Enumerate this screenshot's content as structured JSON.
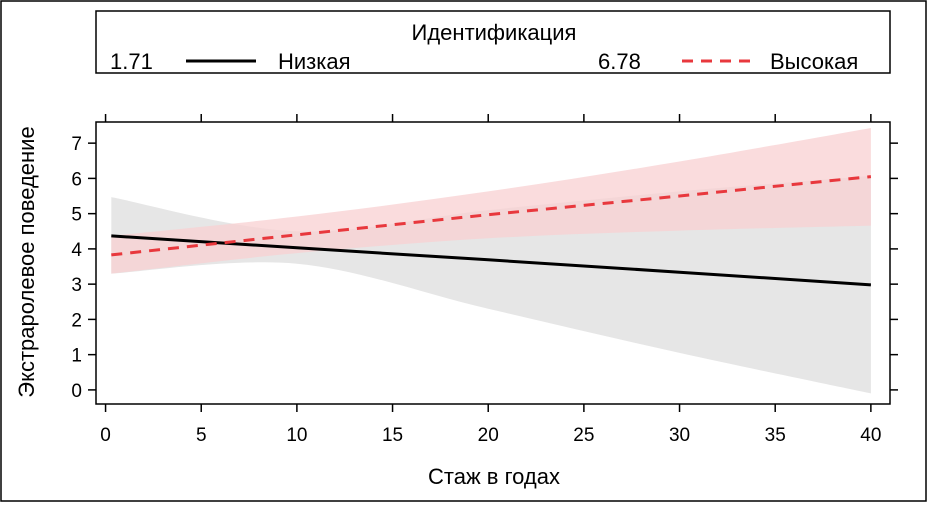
{
  "chart_data": {
    "type": "line",
    "legend": {
      "title": "Идентификация",
      "placement": "top",
      "entries": [
        {
          "value_label": "1.71",
          "name": "Низкая",
          "color": "#000000",
          "dash": "solid"
        },
        {
          "value_label": "6.78",
          "name": "Высокая",
          "color": "#e8383d",
          "dash": "dashed"
        }
      ]
    },
    "xlabel": "Стаж в годах",
    "ylabel": "Экстраролевое поведение",
    "xlim": [
      -0.5,
      41
    ],
    "ylim": [
      -0.4,
      7.6
    ],
    "xticks": [
      0,
      5,
      10,
      15,
      20,
      25,
      30,
      35,
      40
    ],
    "yticks": [
      0,
      1,
      2,
      3,
      4,
      5,
      6,
      7
    ],
    "grid": false,
    "series": [
      {
        "name": "Низкая",
        "color": "#000000",
        "band_color": "#e6e6e6",
        "x": [
          0.3,
          10,
          20,
          30,
          40
        ],
        "y": [
          4.37,
          4.03,
          3.69,
          3.34,
          2.98
        ],
        "lower": [
          3.3,
          3.58,
          2.3,
          1.05,
          -0.1
        ],
        "upper": [
          5.47,
          4.5,
          5.1,
          5.63,
          6.07
        ]
      },
      {
        "name": "Высокая",
        "color": "#e8383d",
        "band_color": "#f8d0d2",
        "x": [
          0.3,
          10,
          20,
          30,
          40
        ],
        "y": [
          3.83,
          4.4,
          4.97,
          5.5,
          6.05
        ],
        "lower": [
          3.3,
          3.88,
          4.3,
          4.52,
          4.66
        ],
        "upper": [
          4.37,
          4.92,
          5.63,
          6.48,
          7.43
        ]
      }
    ]
  }
}
